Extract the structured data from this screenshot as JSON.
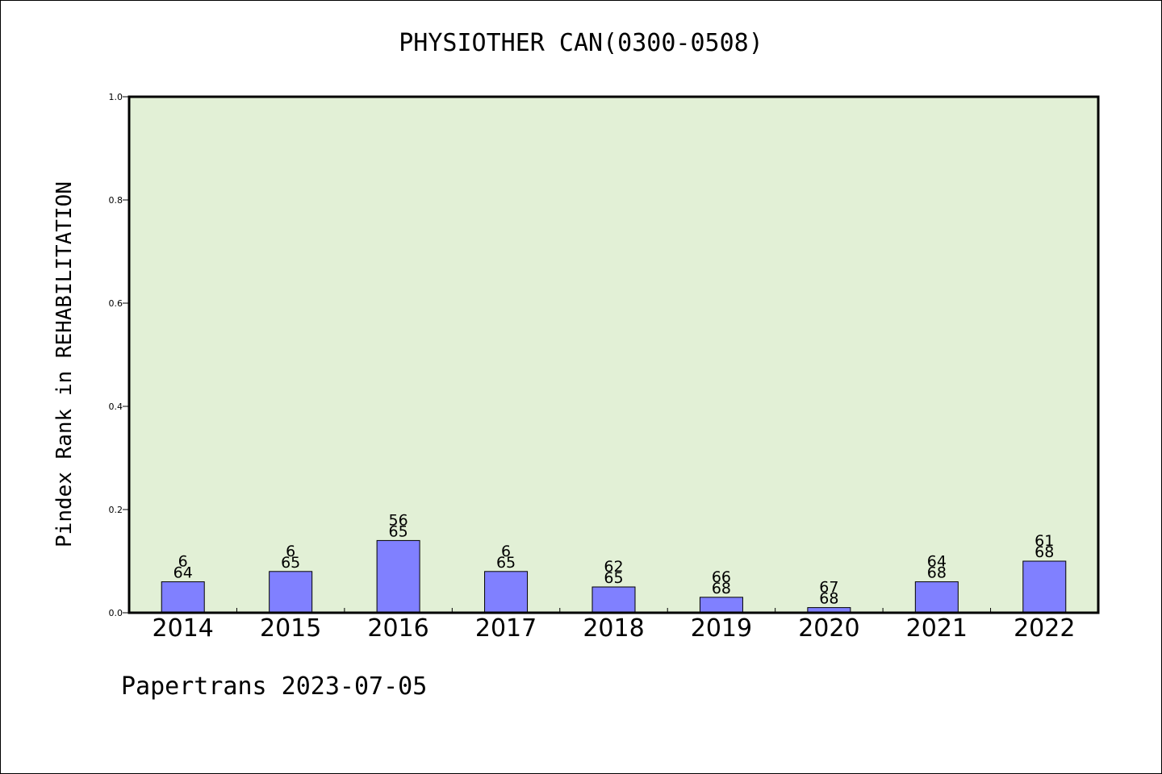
{
  "chart_data": {
    "type": "bar",
    "title": "PHYSIOTHER CAN(0300-0508)",
    "ylabel": "Pindex Rank in REHABILITATION",
    "xlabel": "",
    "ylim": [
      0,
      1.0
    ],
    "yticks": [
      "0.0",
      "0.2",
      "0.4",
      "0.6",
      "0.8",
      "1.0"
    ],
    "ytick_values": [
      0,
      0.2,
      0.4,
      0.6,
      0.8,
      1.0
    ],
    "categories": [
      "2014",
      "2015",
      "2016",
      "2017",
      "2018",
      "2019",
      "2020",
      "2021",
      "2022"
    ],
    "values": [
      0.06,
      0.08,
      0.14,
      0.08,
      0.05,
      0.03,
      0.01,
      0.06,
      0.1
    ],
    "rank_labels": [
      "6",
      "6",
      "56",
      "6",
      "62",
      "66",
      "67",
      "64",
      "61"
    ],
    "total_labels": [
      "64",
      "65",
      "65",
      "65",
      "65",
      "68",
      "68",
      "68",
      "68"
    ],
    "grid": false,
    "plot_background": "#e2f0d6",
    "bar_color": "#8080ff"
  },
  "footer": "Papertrans 2023-07-05"
}
